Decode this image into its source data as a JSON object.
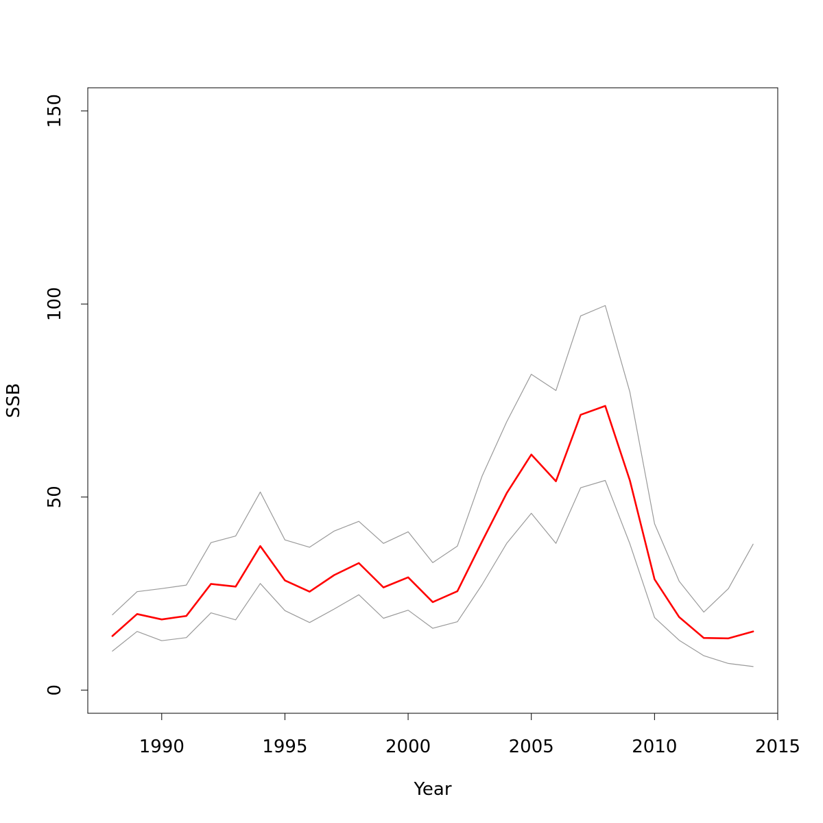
{
  "chart_data": {
    "type": "line",
    "xlabel": "Year",
    "ylabel": "SSB",
    "xlim": [
      1987,
      2015
    ],
    "ylim": [
      -6,
      156
    ],
    "x_ticks": [
      1990,
      1995,
      2000,
      2005,
      2010,
      2015
    ],
    "y_ticks": [
      0,
      50,
      100,
      150
    ],
    "x": [
      1988,
      1989,
      1990,
      1991,
      1992,
      1993,
      1994,
      1995,
      1996,
      1997,
      1998,
      1999,
      2000,
      2001,
      2002,
      2003,
      2004,
      2005,
      2006,
      2007,
      2008,
      2009,
      2010,
      2011,
      2012,
      2013,
      2014
    ],
    "grid": false,
    "legend": "none",
    "series": [
      {
        "role": "upper",
        "color": "#999999",
        "values": [
          19.5,
          25.5,
          26.3,
          27.2,
          38.2,
          39.9,
          51.3,
          38.9,
          37.0,
          41.2,
          43.7,
          38.0,
          41.0,
          33.0,
          37.3,
          55.4,
          69.5,
          81.8,
          77.6,
          96.9,
          99.6,
          77.2,
          43.1,
          28.2,
          20.2,
          26.3,
          37.8
        ]
      },
      {
        "role": "estimate",
        "color": "#ff0000",
        "values": [
          14.0,
          19.7,
          18.3,
          19.2,
          27.5,
          26.8,
          37.3,
          28.4,
          25.5,
          29.8,
          32.9,
          26.6,
          29.2,
          22.8,
          25.6,
          38.5,
          51.0,
          61.0,
          54.1,
          71.3,
          73.6,
          54.3,
          28.7,
          18.9,
          13.5,
          13.4,
          15.2
        ]
      },
      {
        "role": "lower",
        "color": "#999999",
        "values": [
          10.1,
          15.2,
          12.8,
          13.6,
          20.0,
          18.2,
          27.6,
          20.6,
          17.5,
          21.0,
          24.7,
          18.6,
          20.7,
          16.0,
          17.7,
          27.3,
          38.0,
          45.8,
          38.0,
          52.4,
          54.3,
          37.9,
          18.8,
          12.9,
          8.9,
          6.9,
          6.1
        ]
      }
    ]
  }
}
